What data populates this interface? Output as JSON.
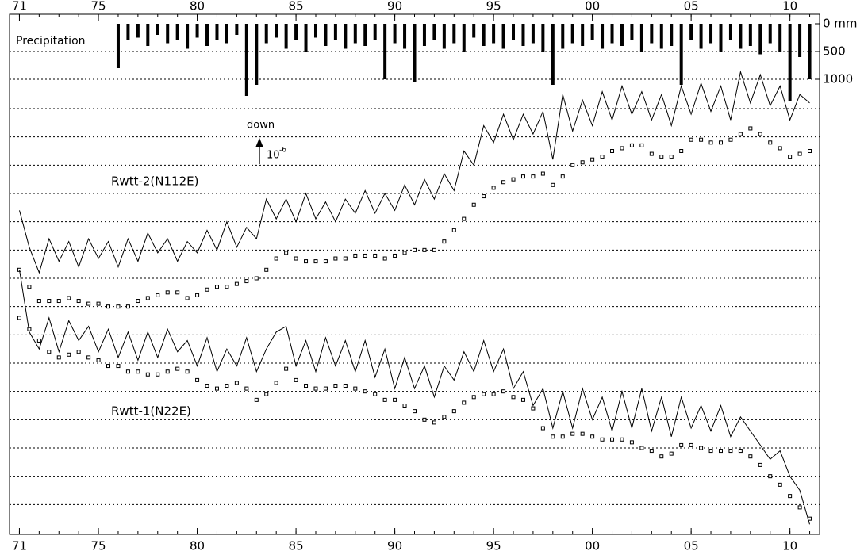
{
  "chart_data": [
    {
      "type": "bar",
      "title": "Precipitation",
      "color": "#000000",
      "inverted": true,
      "x": [
        1976,
        1976.5,
        1977,
        1977.5,
        1978,
        1978.5,
        1979,
        1979.5,
        1980,
        1980.5,
        1981,
        1981.5,
        1982,
        1982.5,
        1983,
        1983.5,
        1984,
        1984.5,
        1985,
        1985.5,
        1986,
        1986.5,
        1987,
        1987.5,
        1988,
        1988.5,
        1989,
        1989.5,
        1990,
        1990.5,
        1991,
        1991.5,
        1992,
        1992.5,
        1993,
        1993.5,
        1994,
        1994.5,
        1995,
        1995.5,
        1996,
        1996.5,
        1997,
        1997.5,
        1998,
        1998.5,
        1999,
        1999.5,
        2000,
        2000.5,
        2001,
        2001.5,
        2002,
        2002.5,
        2003,
        2003.5,
        2004,
        2004.5,
        2005,
        2005.5,
        2006,
        2006.5,
        2007,
        2007.5,
        2008,
        2008.5,
        2009,
        2009.5,
        2010,
        2010.5,
        2011
      ],
      "values": [
        800,
        300,
        250,
        400,
        200,
        350,
        300,
        450,
        250,
        400,
        300,
        350,
        200,
        1300,
        1100,
        350,
        250,
        450,
        300,
        500,
        250,
        400,
        300,
        450,
        350,
        400,
        300,
        1000,
        350,
        450,
        1050,
        400,
        300,
        450,
        350,
        500,
        250,
        400,
        350,
        450,
        300,
        400,
        350,
        500,
        1100,
        450,
        350,
        400,
        300,
        450,
        350,
        400,
        300,
        500,
        350,
        450,
        400,
        1100,
        300,
        450,
        350,
        500,
        300,
        450,
        400,
        550,
        350,
        500,
        1400,
        600,
        1000
      ],
      "xlim": [
        1970.5,
        2011.5
      ],
      "xticks": [
        {
          "value": 1971,
          "label": "71"
        },
        {
          "value": 1975,
          "label": "75"
        },
        {
          "value": 1980,
          "label": "80"
        },
        {
          "value": 1985,
          "label": "85"
        },
        {
          "value": 1990,
          "label": "90"
        },
        {
          "value": 1995,
          "label": "95"
        },
        {
          "value": 2000,
          "label": "00"
        },
        {
          "value": 2005,
          "label": "05"
        },
        {
          "value": 2010,
          "label": "10"
        }
      ],
      "ylim": [
        0,
        1500
      ],
      "yticks": [
        {
          "value": 0,
          "label": "0 mm"
        },
        500,
        1000
      ],
      "grid": true
    },
    {
      "type": "line",
      "color": "#000000",
      "annotation": "down",
      "scale_base": "10",
      "scale_exponent": "-6",
      "x": [
        1971,
        1971.5,
        1972,
        1972.5,
        1973,
        1973.5,
        1974,
        1974.5,
        1975,
        1975.5,
        1976,
        1976.5,
        1977,
        1977.5,
        1978,
        1978.5,
        1979,
        1979.5,
        1980,
        1980.5,
        1981,
        1981.5,
        1982,
        1982.5,
        1983,
        1983.5,
        1984,
        1984.5,
        1985,
        1985.5,
        1986,
        1986.5,
        1987,
        1987.5,
        1988,
        1988.5,
        1989,
        1989.5,
        1990,
        1990.5,
        1991,
        1991.5,
        1992,
        1992.5,
        1993,
        1993.5,
        1994,
        1994.5,
        1995,
        1995.5,
        1996,
        1996.5,
        1997,
        1997.5,
        1998,
        1998.5,
        1999,
        1999.5,
        2000,
        2000.5,
        2001,
        2001.5,
        2002,
        2002.5,
        2003,
        2003.5,
        2004,
        2004.5,
        2005,
        2005.5,
        2006,
        2006.5,
        2007,
        2007.5,
        2008,
        2008.5,
        2009,
        2009.5,
        2010,
        2010.5,
        2011
      ],
      "series": [
        {
          "name": "Rwtt-2(N112E)",
          "values": [
            11.4,
            10.1,
            9.2,
            10.4,
            9.6,
            10.3,
            9.4,
            10.4,
            9.7,
            10.3,
            9.4,
            10.4,
            9.6,
            10.6,
            9.9,
            10.4,
            9.6,
            10.3,
            9.9,
            10.7,
            10.0,
            11.0,
            10.1,
            10.8,
            10.4,
            11.8,
            11.1,
            11.8,
            11.0,
            12.0,
            11.1,
            11.7,
            11.0,
            11.8,
            11.3,
            12.1,
            11.3,
            12.0,
            11.4,
            12.3,
            11.6,
            12.5,
            11.8,
            12.7,
            12.1,
            13.5,
            13.0,
            14.4,
            13.8,
            14.8,
            13.9,
            14.8,
            14.1,
            14.9,
            13.2,
            15.5,
            14.2,
            15.3,
            14.4,
            15.6,
            14.6,
            15.8,
            14.8,
            15.6,
            14.6,
            15.5,
            14.4,
            15.8,
            14.8,
            15.9,
            14.9,
            15.8,
            14.6,
            16.3,
            15.2,
            16.2,
            15.1,
            15.8,
            14.6,
            15.5,
            15.2
          ],
          "smoothed": [
            9.3,
            8.7,
            8.2,
            8.2,
            8.2,
            8.3,
            8.2,
            8.1,
            8.1,
            8.0,
            8.0,
            8.0,
            8.2,
            8.3,
            8.4,
            8.5,
            8.5,
            8.3,
            8.4,
            8.6,
            8.7,
            8.7,
            8.8,
            8.9,
            9.0,
            9.3,
            9.7,
            9.9,
            9.7,
            9.6,
            9.6,
            9.6,
            9.7,
            9.7,
            9.8,
            9.8,
            9.8,
            9.7,
            9.8,
            9.9,
            10.0,
            10.0,
            10.0,
            10.3,
            10.7,
            11.1,
            11.6,
            11.9,
            12.2,
            12.4,
            12.5,
            12.6,
            12.6,
            12.7,
            12.3,
            12.6,
            13.0,
            13.1,
            13.2,
            13.3,
            13.5,
            13.6,
            13.7,
            13.7,
            13.4,
            13.3,
            13.3,
            13.5,
            13.9,
            13.9,
            13.8,
            13.8,
            13.9,
            14.1,
            14.3,
            14.1,
            13.8,
            13.6,
            13.3,
            13.4,
            13.5
          ]
        },
        {
          "name": "Rwtt-1(N22E)",
          "values": [
            9.3,
            7.1,
            6.5,
            7.6,
            6.4,
            7.5,
            6.8,
            7.3,
            6.4,
            7.2,
            6.2,
            7.1,
            6.1,
            7.1,
            6.2,
            7.2,
            6.4,
            6.8,
            5.9,
            6.9,
            5.7,
            6.5,
            5.9,
            6.9,
            5.7,
            6.5,
            7.1,
            7.3,
            5.9,
            6.8,
            5.7,
            6.9,
            5.9,
            6.8,
            5.7,
            6.8,
            5.5,
            6.5,
            5.1,
            6.2,
            5.1,
            5.9,
            4.8,
            5.9,
            5.4,
            6.4,
            5.7,
            6.8,
            5.7,
            6.5,
            5.1,
            5.7,
            4.5,
            5.1,
            3.7,
            5.0,
            3.7,
            5.1,
            4.0,
            4.8,
            3.6,
            5.0,
            3.7,
            5.1,
            3.6,
            4.8,
            3.4,
            4.8,
            3.7,
            4.5,
            3.6,
            4.5,
            3.4,
            4.1,
            3.6,
            3.1,
            2.6,
            2.9,
            2.0,
            1.5,
            0.3
          ],
          "smoothed": [
            7.6,
            7.2,
            6.8,
            6.4,
            6.2,
            6.3,
            6.4,
            6.2,
            6.1,
            5.9,
            5.9,
            5.7,
            5.7,
            5.6,
            5.6,
            5.7,
            5.8,
            5.7,
            5.4,
            5.2,
            5.1,
            5.2,
            5.3,
            5.1,
            4.7,
            4.9,
            5.3,
            5.8,
            5.4,
            5.2,
            5.1,
            5.1,
            5.2,
            5.2,
            5.1,
            5.0,
            4.9,
            4.7,
            4.7,
            4.5,
            4.3,
            4.0,
            3.9,
            4.1,
            4.3,
            4.6,
            4.8,
            4.9,
            4.9,
            5.0,
            4.8,
            4.7,
            4.4,
            3.7,
            3.4,
            3.4,
            3.5,
            3.5,
            3.4,
            3.3,
            3.3,
            3.3,
            3.2,
            3.0,
            2.9,
            2.7,
            2.8,
            3.1,
            3.1,
            3.0,
            2.9,
            2.9,
            2.9,
            2.9,
            2.7,
            2.4,
            2.0,
            1.7,
            1.3,
            0.9,
            0.5
          ]
        }
      ],
      "xlim": [
        1970.5,
        2011.5
      ],
      "xticks": [
        {
          "value": 1971,
          "label": "71"
        },
        {
          "value": 1975,
          "label": "75"
        },
        {
          "value": 1980,
          "label": "80"
        },
        {
          "value": 1985,
          "label": "85"
        },
        {
          "value": 1990,
          "label": "90"
        },
        {
          "value": 1995,
          "label": "95"
        },
        {
          "value": 2000,
          "label": "00"
        },
        {
          "value": 2005,
          "label": "05"
        },
        {
          "value": 2010,
          "label": "10"
        }
      ],
      "ylim": [
        0,
        18
      ],
      "grid": true
    }
  ]
}
